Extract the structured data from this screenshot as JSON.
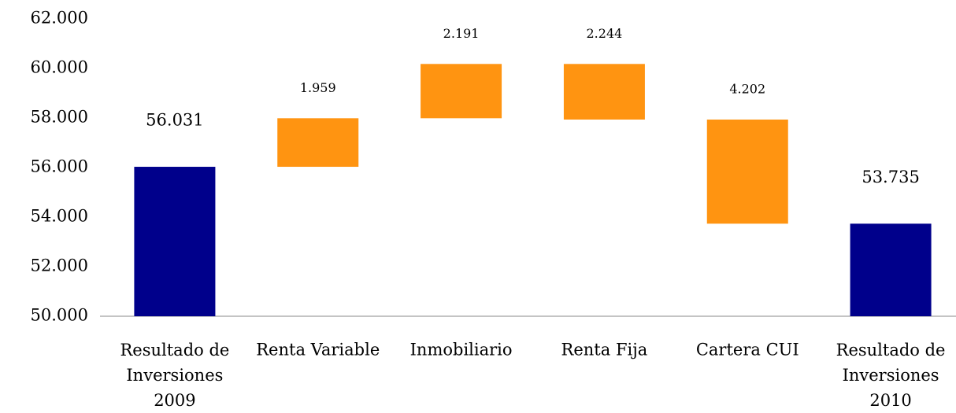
{
  "chart_data": {
    "type": "waterfall",
    "categories": [
      "Resultado de Inversiones 2009",
      "Renta Variable",
      "Inmobiliario",
      "Renta Fija",
      "Cartera CUI",
      "Resultado de Inversiones 2010"
    ],
    "values": [
      56031,
      1959,
      2191,
      -2244,
      -4202,
      53735
    ],
    "value_labels": [
      "56.031",
      "1.959",
      "2.191",
      "2.244",
      "4.202",
      "53.735"
    ],
    "measures": [
      "total",
      "relative",
      "relative",
      "relative",
      "relative",
      "total"
    ],
    "total_color": "#00008b",
    "delta_color": "#ff9411",
    "ylim": [
      50000,
      62000
    ],
    "yticks": [
      {
        "value": 50000,
        "label": "50.000"
      },
      {
        "value": 52000,
        "label": "52.000"
      },
      {
        "value": 54000,
        "label": "54.000"
      },
      {
        "value": 56000,
        "label": "56.000"
      },
      {
        "value": 58000,
        "label": "58.000"
      },
      {
        "value": 60000,
        "label": "60.000"
      },
      {
        "value": 62000,
        "label": "62.000"
      }
    ],
    "grid": false
  }
}
